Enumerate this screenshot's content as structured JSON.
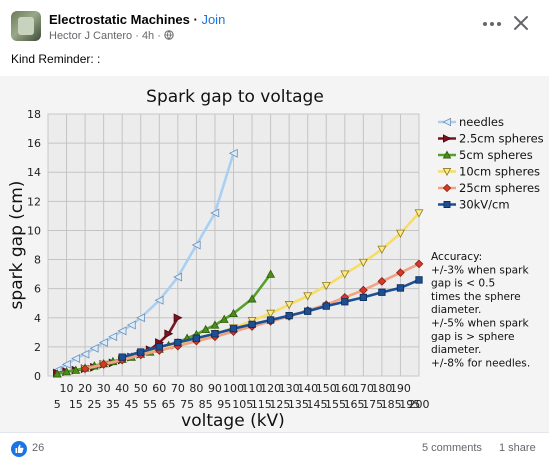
{
  "header": {
    "group_name": "Electrostatic Machines",
    "separator": " · ",
    "join_label": "Join",
    "author": "Hector J Cantero",
    "time": "4h",
    "meta_separator": " · "
  },
  "post": {
    "text": "Kind Reminder: :"
  },
  "icons": {
    "more": "more-icon",
    "close": "close-icon",
    "privacy": "globe-icon",
    "reaction": "like-icon"
  },
  "colors": {
    "accent": "#1b74e4",
    "needles": "#9ec8f0",
    "sphere_2_5": "#7a1420",
    "sphere_5": "#4c8c1a",
    "sphere_10": "#f5d34a",
    "sphere_25": "#d43a2a",
    "kv30": "#143f7c",
    "plot_bg": "#ececec"
  },
  "footer": {
    "reactions_count": "26",
    "comments_label": "5 comments",
    "shares_label": "1 share"
  },
  "chart_data": {
    "type": "line",
    "title": "Spark gap to voltage",
    "xlabel": "voltage (kV)",
    "ylabel": "spark gap (cm)",
    "xlim": [
      0,
      200
    ],
    "ylim": [
      0,
      18
    ],
    "y_ticks": [
      "0",
      "2",
      "4",
      "6",
      "8",
      "10",
      "12",
      "14",
      "16",
      "18"
    ],
    "x_ticks_upper": [
      "10",
      "20",
      "30",
      "40",
      "50",
      "60",
      "70",
      "80",
      "90",
      "100",
      "110",
      "120",
      "130",
      "140",
      "150",
      "160",
      "170",
      "180",
      "190"
    ],
    "x_ticks_lower": [
      "5",
      "15",
      "25",
      "35",
      "45",
      "55",
      "65",
      "75",
      "85",
      "95",
      "105",
      "115",
      "125",
      "135",
      "145",
      "155",
      "165",
      "175",
      "185",
      "195",
      "200"
    ],
    "grid": true,
    "legend_position": "top-right",
    "series": [
      {
        "name": "needles",
        "x": [
          5,
          10,
          15,
          20,
          25,
          30,
          35,
          40,
          45,
          50,
          60,
          70,
          80,
          90,
          100
        ],
        "y": [
          0.4,
          0.8,
          1.2,
          1.5,
          1.9,
          2.3,
          2.7,
          3.1,
          3.5,
          4.0,
          5.2,
          6.8,
          9.0,
          11.2,
          15.3
        ]
      },
      {
        "name": "2.5cm spheres",
        "x": [
          5,
          10,
          15,
          20,
          25,
          30,
          35,
          40,
          45,
          50,
          55,
          60,
          65,
          70
        ],
        "y": [
          0.2,
          0.3,
          0.4,
          0.5,
          0.6,
          0.8,
          0.9,
          1.1,
          1.3,
          1.5,
          1.8,
          2.3,
          2.9,
          4.0
        ]
      },
      {
        "name": "5cm spheres",
        "x": [
          5,
          10,
          15,
          20,
          25,
          30,
          35,
          40,
          45,
          50,
          55,
          60,
          65,
          70,
          75,
          80,
          85,
          90,
          95,
          100,
          110,
          120
        ],
        "y": [
          0.15,
          0.3,
          0.4,
          0.55,
          0.7,
          0.85,
          1.0,
          1.15,
          1.3,
          1.5,
          1.65,
          1.85,
          2.1,
          2.3,
          2.6,
          2.85,
          3.2,
          3.5,
          3.9,
          4.3,
          5.3,
          7.0
        ]
      },
      {
        "name": "10cm spheres",
        "x": [
          20,
          30,
          40,
          50,
          60,
          70,
          80,
          90,
          100,
          110,
          120,
          130,
          140,
          150,
          160,
          170,
          180,
          190,
          200
        ],
        "y": [
          0.5,
          0.8,
          1.1,
          1.45,
          1.8,
          2.15,
          2.5,
          2.9,
          3.3,
          3.8,
          4.3,
          4.9,
          5.5,
          6.2,
          7.0,
          7.8,
          8.7,
          9.8,
          11.2
        ]
      },
      {
        "name": "25cm spheres",
        "x": [
          20,
          30,
          40,
          50,
          60,
          70,
          80,
          90,
          100,
          110,
          120,
          130,
          140,
          150,
          160,
          170,
          180,
          190,
          200
        ],
        "y": [
          0.5,
          0.8,
          1.1,
          1.45,
          1.75,
          2.05,
          2.4,
          2.7,
          3.05,
          3.4,
          3.75,
          4.1,
          4.5,
          4.9,
          5.4,
          5.9,
          6.5,
          7.1,
          7.7
        ]
      },
      {
        "name": "30kV/cm",
        "x": [
          40,
          50,
          60,
          70,
          80,
          90,
          100,
          110,
          120,
          130,
          140,
          150,
          160,
          170,
          180,
          190,
          200
        ],
        "y": [
          1.3,
          1.65,
          2.0,
          2.3,
          2.6,
          2.9,
          3.25,
          3.55,
          3.85,
          4.15,
          4.45,
          4.8,
          5.1,
          5.4,
          5.75,
          6.05,
          6.6
        ]
      }
    ],
    "annotation": [
      "Accuracy:",
      "+/-3% when spark",
      "gap is < 0.5",
      "times the sphere",
      "diameter.",
      "+/-5% when spark",
      "gap is > sphere",
      "diameter.",
      "+/-8% for needles."
    ]
  }
}
